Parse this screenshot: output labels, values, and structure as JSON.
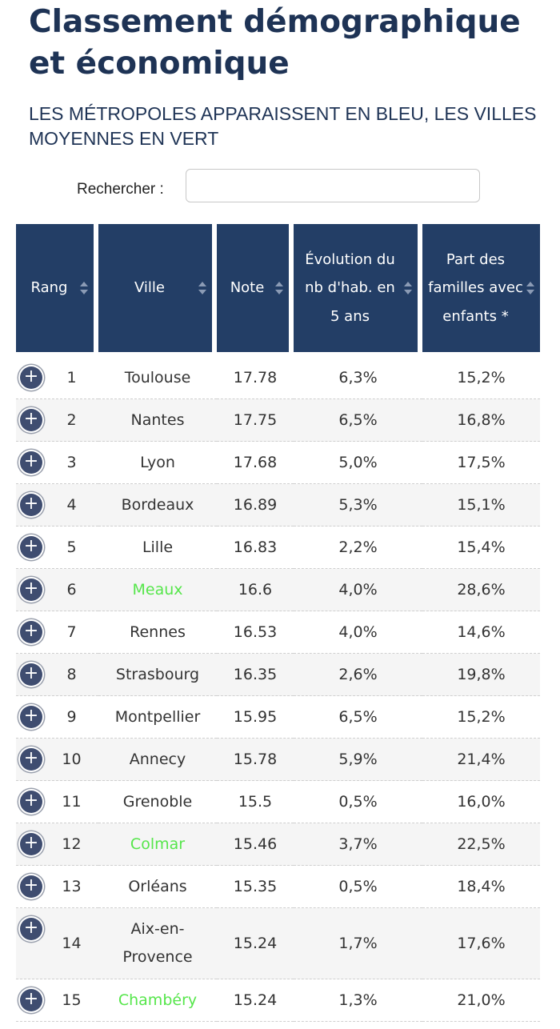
{
  "page": {
    "title": "Classement démographique et économique",
    "subtitle": "LES MÉTROPOLES APPARAISSENT EN BLEU, LES VILLES MOYENNES EN VERT"
  },
  "search": {
    "label": "Rechercher :",
    "value": ""
  },
  "table": {
    "columns": [
      {
        "label": "Rang"
      },
      {
        "label": "Ville"
      },
      {
        "label": "Note"
      },
      {
        "label": "Évolution du nb d'hab. en 5 ans"
      },
      {
        "label": "Part des familles avec enfants *"
      }
    ],
    "rows": [
      {
        "rang": "1",
        "ville": "Toulouse",
        "note": "17.78",
        "evolution": "6,3%",
        "familles": "15,2%",
        "type": "metropole"
      },
      {
        "rang": "2",
        "ville": "Nantes",
        "note": "17.75",
        "evolution": "6,5%",
        "familles": "16,8%",
        "type": "metropole"
      },
      {
        "rang": "3",
        "ville": "Lyon",
        "note": "17.68",
        "evolution": "5,0%",
        "familles": "17,5%",
        "type": "metropole"
      },
      {
        "rang": "4",
        "ville": "Bordeaux",
        "note": "16.89",
        "evolution": "5,3%",
        "familles": "15,1%",
        "type": "metropole"
      },
      {
        "rang": "5",
        "ville": "Lille",
        "note": "16.83",
        "evolution": "2,2%",
        "familles": "15,4%",
        "type": "metropole"
      },
      {
        "rang": "6",
        "ville": "Meaux",
        "note": "16.6",
        "evolution": "4,0%",
        "familles": "28,6%",
        "type": "ville-moyenne"
      },
      {
        "rang": "7",
        "ville": "Rennes",
        "note": "16.53",
        "evolution": "4,0%",
        "familles": "14,6%",
        "type": "metropole"
      },
      {
        "rang": "8",
        "ville": "Strasbourg",
        "note": "16.35",
        "evolution": "2,6%",
        "familles": "19,8%",
        "type": "metropole"
      },
      {
        "rang": "9",
        "ville": "Montpellier",
        "note": "15.95",
        "evolution": "6,5%",
        "familles": "15,2%",
        "type": "metropole"
      },
      {
        "rang": "10",
        "ville": "Annecy",
        "note": "15.78",
        "evolution": "5,9%",
        "familles": "21,4%",
        "type": "metropole"
      },
      {
        "rang": "11",
        "ville": "Grenoble",
        "note": "15.5",
        "evolution": "0,5%",
        "familles": "16,0%",
        "type": "metropole"
      },
      {
        "rang": "12",
        "ville": "Colmar",
        "note": "15.46",
        "evolution": "3,7%",
        "familles": "22,5%",
        "type": "ville-moyenne"
      },
      {
        "rang": "13",
        "ville": "Orléans",
        "note": "15.35",
        "evolution": "0,5%",
        "familles": "18,4%",
        "type": "metropole"
      },
      {
        "rang": "14",
        "ville": "Aix-en-Provence",
        "note": "15.24",
        "evolution": "1,7%",
        "familles": "17,6%",
        "type": "metropole"
      },
      {
        "rang": "15",
        "ville": "Chambéry",
        "note": "15.24",
        "evolution": "1,3%",
        "familles": "21,0%",
        "type": "ville-moyenne"
      }
    ]
  },
  "colors": {
    "header_bg": "#233e66",
    "title": "#1e3355",
    "ville_moyenne": "#56e64b",
    "expand_button": "#3f4d70"
  },
  "icons": {
    "expand": "plus-circle-icon",
    "sort": "sort-arrows-icon"
  }
}
